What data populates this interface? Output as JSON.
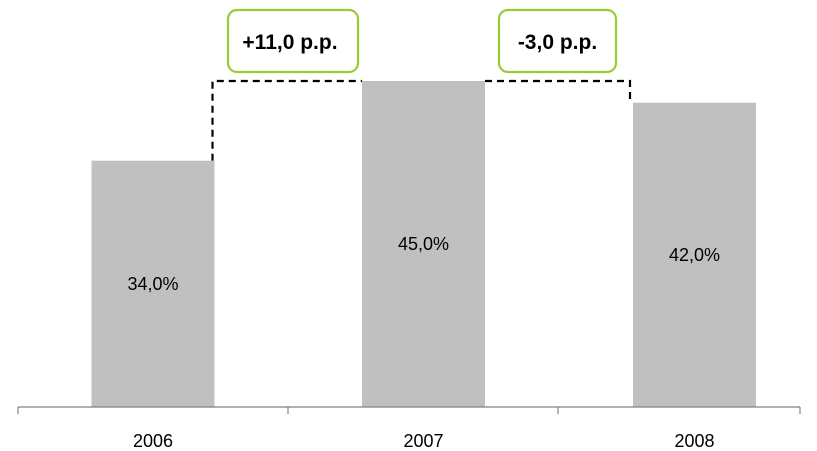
{
  "chart_data": {
    "type": "bar",
    "categories": [
      "2006",
      "2007",
      "2008"
    ],
    "values": [
      34.0,
      45.0,
      42.0
    ],
    "value_labels": [
      "34,0%",
      "45,0%",
      "42,0%"
    ],
    "title": "",
    "xlabel": "",
    "ylabel": "",
    "ylim": [
      0,
      45
    ],
    "grid": false,
    "legend": "none",
    "annotations": [
      {
        "from": "2006",
        "to": "2007",
        "label": "+11,0 p.p."
      },
      {
        "from": "2007",
        "to": "2008",
        "label": "-3,0 p.p."
      }
    ],
    "colors": {
      "bar": "#c0c0c0",
      "annotation_border": "#99cc33",
      "axis": "#808080",
      "connector": "#000000"
    }
  }
}
